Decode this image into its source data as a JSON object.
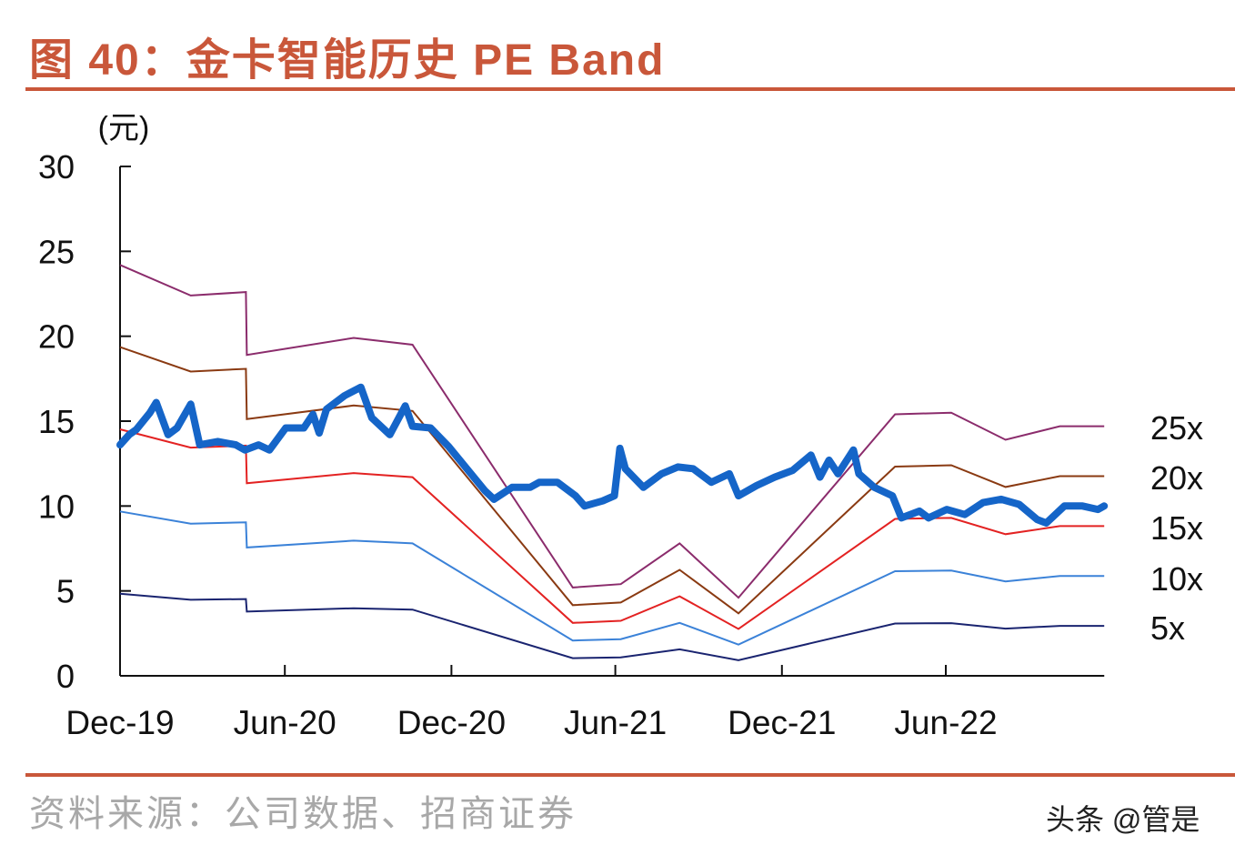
{
  "header": {
    "title": "图 40：金卡智能历史 PE Band"
  },
  "footer": {
    "source": "资料来源：公司数据、招商证券",
    "watermark": "头条 @管是"
  },
  "chart_data": {
    "type": "line",
    "title": "图 40：金卡智能历史 PE Band",
    "ylabel": "(元)",
    "xlabel": "",
    "ylim": [
      0,
      30
    ],
    "yticks": [
      "0",
      "5",
      "10",
      "15",
      "20",
      "25",
      "30"
    ],
    "xticks": [
      {
        "date": "2019-12-31",
        "label": "Dec-19"
      },
      {
        "date": "2020-06-30",
        "label": "Jun-20"
      },
      {
        "date": "2020-12-31",
        "label": "Dec-20"
      },
      {
        "date": "2021-06-30",
        "label": "Jun-21"
      },
      {
        "date": "2021-12-31",
        "label": "Dec-21"
      },
      {
        "date": "2022-06-30",
        "label": "Jun-22"
      }
    ],
    "xlim": [
      "2019-12-31",
      "2022-12-22"
    ],
    "grid": false,
    "band_dates": [
      "2019-12-31",
      "2020-03-18",
      "2020-05-18",
      "2020-05-19",
      "2020-09-14",
      "2020-11-18",
      "2021-05-14",
      "2021-07-06",
      "2021-09-09",
      "2021-11-13",
      "2022-05-05",
      "2022-07-06",
      "2022-09-04",
      "2022-11-03",
      "2022-12-22"
    ],
    "series": [
      {
        "name": "25x",
        "color": "#8b2c6c",
        "values": [
          24.2,
          22.4,
          22.6,
          18.9,
          19.9,
          19.5,
          5.2,
          5.4,
          7.8,
          4.6,
          15.4,
          15.5,
          13.9,
          14.7,
          14.7
        ]
      },
      {
        "name": "20x",
        "color": "#8a3a12",
        "values": [
          19.36,
          17.92,
          18.08,
          15.12,
          15.92,
          15.6,
          4.16,
          4.32,
          6.24,
          3.68,
          12.32,
          12.4,
          11.12,
          11.76,
          11.76
        ]
      },
      {
        "name": "15x",
        "color": "#e32222",
        "values": [
          14.52,
          13.44,
          13.56,
          11.34,
          11.94,
          11.7,
          3.12,
          3.24,
          4.68,
          2.76,
          9.24,
          9.3,
          8.34,
          8.82,
          8.82
        ]
      },
      {
        "name": "10x",
        "color": "#3b82d8",
        "values": [
          9.68,
          8.96,
          9.04,
          7.56,
          7.96,
          7.8,
          2.08,
          2.16,
          3.12,
          1.84,
          6.16,
          6.2,
          5.56,
          5.88,
          5.88
        ]
      },
      {
        "name": "5x",
        "color": "#1a2470",
        "values": [
          4.84,
          4.48,
          4.52,
          3.78,
          3.98,
          3.9,
          1.04,
          1.08,
          1.56,
          0.92,
          3.08,
          3.1,
          2.78,
          2.94,
          2.94
        ]
      }
    ],
    "price": {
      "color": "#1565c8",
      "points": [
        [
          "2019-12-31",
          13.6
        ],
        [
          "2020-01-10",
          14.2
        ],
        [
          "2020-01-18",
          14.5
        ],
        [
          "2020-02-02",
          15.5
        ],
        [
          "2020-02-09",
          16.1
        ],
        [
          "2020-02-22",
          14.2
        ],
        [
          "2020-03-03",
          14.6
        ],
        [
          "2020-03-18",
          16.0
        ],
        [
          "2020-03-28",
          13.6
        ],
        [
          "2020-04-17",
          13.8
        ],
        [
          "2020-05-07",
          13.6
        ],
        [
          "2020-05-17",
          13.3
        ],
        [
          "2020-06-01",
          13.6
        ],
        [
          "2020-06-13",
          13.3
        ],
        [
          "2020-07-01",
          14.6
        ],
        [
          "2020-07-21",
          14.6
        ],
        [
          "2020-07-31",
          15.4
        ],
        [
          "2020-08-07",
          14.3
        ],
        [
          "2020-08-15",
          15.7
        ],
        [
          "2020-09-04",
          16.5
        ],
        [
          "2020-09-22",
          17.0
        ],
        [
          "2020-10-04",
          15.2
        ],
        [
          "2020-10-24",
          14.2
        ],
        [
          "2020-11-10",
          15.9
        ],
        [
          "2020-11-18",
          14.7
        ],
        [
          "2020-12-08",
          14.6
        ],
        [
          "2020-12-28",
          13.5
        ],
        [
          "2021-01-17",
          12.2
        ],
        [
          "2021-02-06",
          10.9
        ],
        [
          "2021-02-16",
          10.4
        ],
        [
          "2021-03-08",
          11.1
        ],
        [
          "2021-03-28",
          11.1
        ],
        [
          "2021-04-07",
          11.4
        ],
        [
          "2021-04-27",
          11.4
        ],
        [
          "2021-05-17",
          10.6
        ],
        [
          "2021-05-27",
          10.0
        ],
        [
          "2021-06-16",
          10.3
        ],
        [
          "2021-06-29",
          10.6
        ],
        [
          "2021-07-05",
          13.4
        ],
        [
          "2021-07-11",
          12.2
        ],
        [
          "2021-07-31",
          11.1
        ],
        [
          "2021-08-20",
          11.9
        ],
        [
          "2021-09-07",
          12.3
        ],
        [
          "2021-09-24",
          12.2
        ],
        [
          "2021-10-14",
          11.4
        ],
        [
          "2021-11-03",
          11.9
        ],
        [
          "2021-11-13",
          10.6
        ],
        [
          "2021-12-03",
          11.2
        ],
        [
          "2021-12-23",
          11.7
        ],
        [
          "2022-01-12",
          12.1
        ],
        [
          "2022-02-01",
          13.0
        ],
        [
          "2022-02-11",
          11.7
        ],
        [
          "2022-02-21",
          12.7
        ],
        [
          "2022-03-03",
          11.9
        ],
        [
          "2022-03-20",
          13.3
        ],
        [
          "2022-03-26",
          11.9
        ],
        [
          "2022-04-12",
          11.1
        ],
        [
          "2022-05-02",
          10.6
        ],
        [
          "2022-05-12",
          9.3
        ],
        [
          "2022-06-01",
          9.7
        ],
        [
          "2022-06-11",
          9.3
        ],
        [
          "2022-07-01",
          9.8
        ],
        [
          "2022-07-21",
          9.5
        ],
        [
          "2022-08-10",
          10.2
        ],
        [
          "2022-08-30",
          10.4
        ],
        [
          "2022-09-19",
          10.1
        ],
        [
          "2022-10-09",
          9.2
        ],
        [
          "2022-10-19",
          9.0
        ],
        [
          "2022-11-08",
          10.0
        ],
        [
          "2022-11-28",
          10.0
        ],
        [
          "2022-12-15",
          9.8
        ],
        [
          "2022-12-22",
          10.0
        ]
      ]
    }
  }
}
